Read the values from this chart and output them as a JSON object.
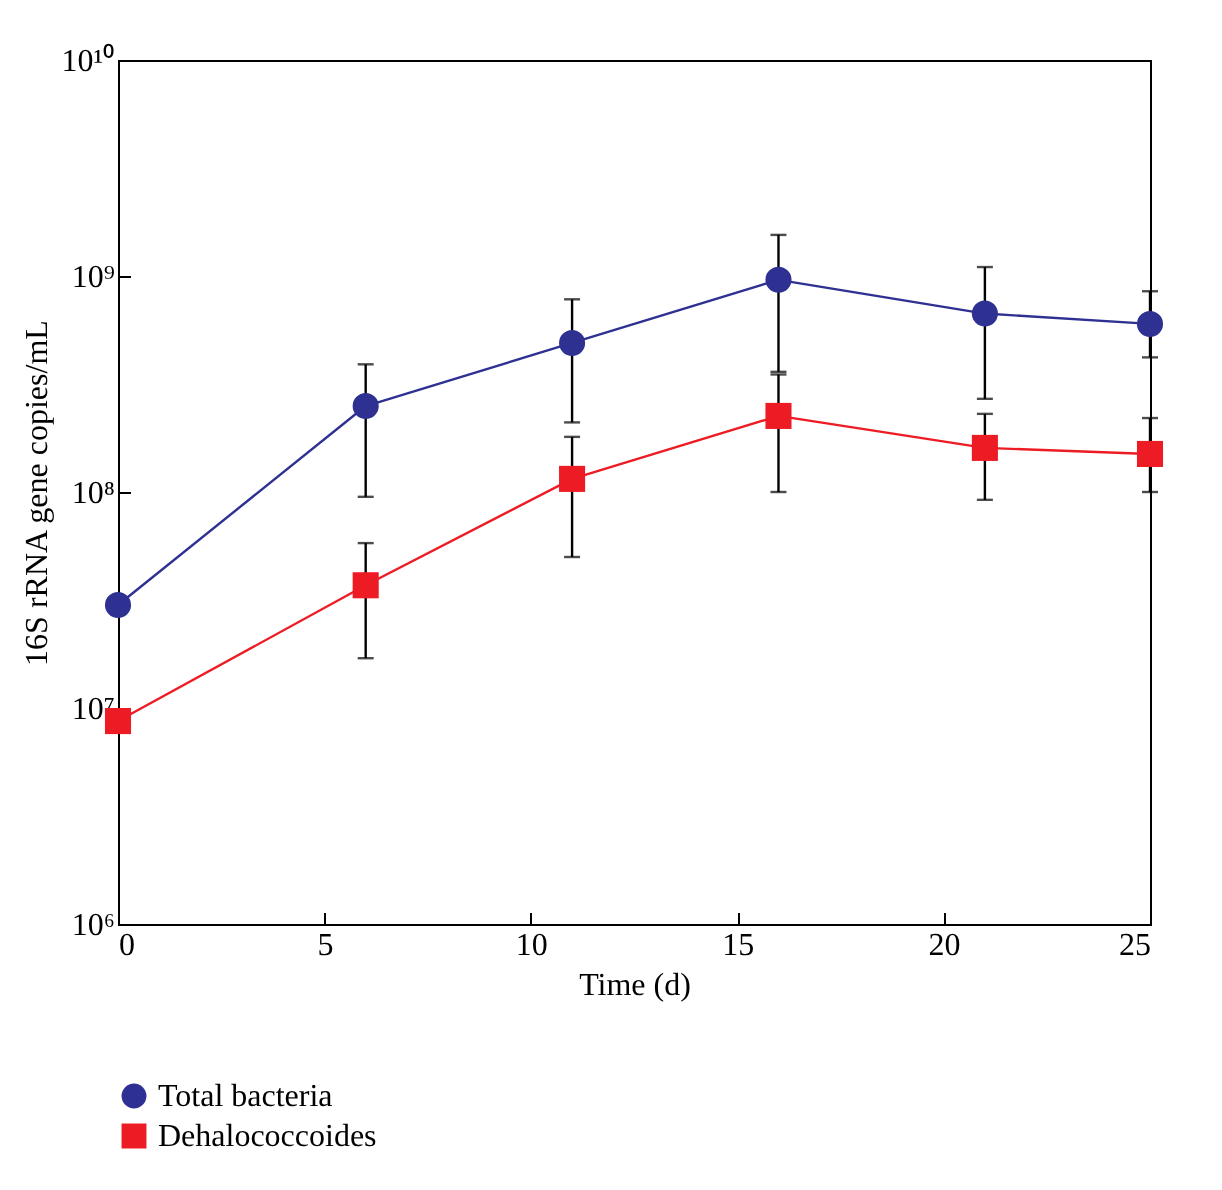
{
  "chart_data": {
    "type": "line",
    "xlabel": "Time (d)",
    "ylabel": "16S rRNA gene copies/mL",
    "x": [
      0,
      6,
      11,
      16,
      21,
      25
    ],
    "xlim": [
      0,
      25
    ],
    "xticks": [
      0,
      5,
      10,
      15,
      20,
      25
    ],
    "ylim": [
      1000000,
      10000000000
    ],
    "yticks": [
      {
        "value": 1000000,
        "label": "10⁶"
      },
      {
        "value": 10000000,
        "label": "10⁷"
      },
      {
        "value": 100000000,
        "label": "10⁸"
      },
      {
        "value": 1000000000,
        "label": "10⁹"
      },
      {
        "value": 10000000000,
        "label": "10¹⁰"
      }
    ],
    "log": "y",
    "legend": "bottom",
    "grid": false,
    "series": [
      {
        "name": "Total bacteria",
        "color": "#2e3192",
        "marker": "circle",
        "values": [
          30000000,
          250000000,
          490000000,
          960000000,
          670000000,
          600000000
        ],
        "errors": [
          null,
          [
            95000000,
            390000000
          ],
          [
            210000000,
            780000000
          ],
          [
            360000000,
            1550000000
          ],
          [
            270000000,
            1100000000
          ],
          [
            420000000,
            850000000
          ]
        ]
      },
      {
        "name": "Dehalococcoides",
        "color": "#ed1c24",
        "marker": "square",
        "values": [
          8700000,
          37000000,
          115000000,
          225000000,
          160000000,
          150000000
        ],
        "errors": [
          null,
          [
            17000000,
            58000000
          ],
          [
            50000000,
            180000000
          ],
          [
            100000000,
            350000000
          ],
          [
            92000000,
            230000000
          ],
          [
            100000000,
            220000000
          ]
        ]
      }
    ]
  }
}
